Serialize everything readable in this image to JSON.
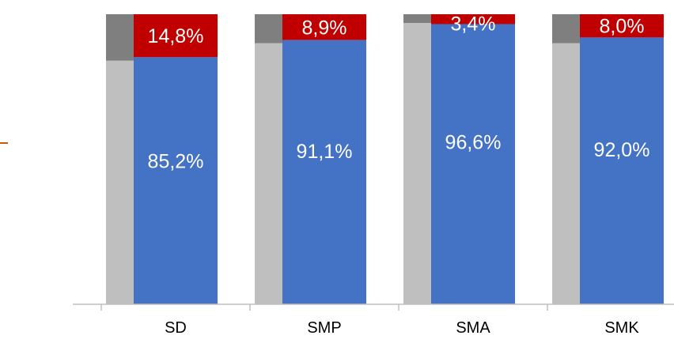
{
  "chart_data": {
    "type": "bar",
    "stacked": true,
    "categories": [
      "SD",
      "SMP",
      "SMA",
      "SMK"
    ],
    "series": [
      {
        "values": [
          85.2,
          91.1,
          96.6,
          92.0
        ],
        "labels": [
          "85,2%",
          "91,1%",
          "96,6%",
          "92,0%"
        ],
        "color": "#4472C4"
      },
      {
        "values": [
          14.8,
          8.9,
          3.4,
          8.0
        ],
        "labels": [
          "14,8%",
          "8,9%",
          "3,4%",
          "8,0%"
        ],
        "color": "#C00000"
      }
    ],
    "background_series": [
      {
        "values": [
          84,
          90,
          97,
          90
        ],
        "color": "#BFBFBF"
      },
      {
        "values": [
          16,
          10,
          3,
          10
        ],
        "color": "#7F7F7F"
      }
    ],
    "ylim": [
      0,
      100
    ],
    "grid": false,
    "legend": "none",
    "title": "",
    "xlabel": "",
    "ylabel": ""
  },
  "colors": {
    "axis": "#BFBFBF",
    "stray_mark": "#C55A11",
    "label_text": "#FFFFFF",
    "tick_text": "#000000"
  }
}
